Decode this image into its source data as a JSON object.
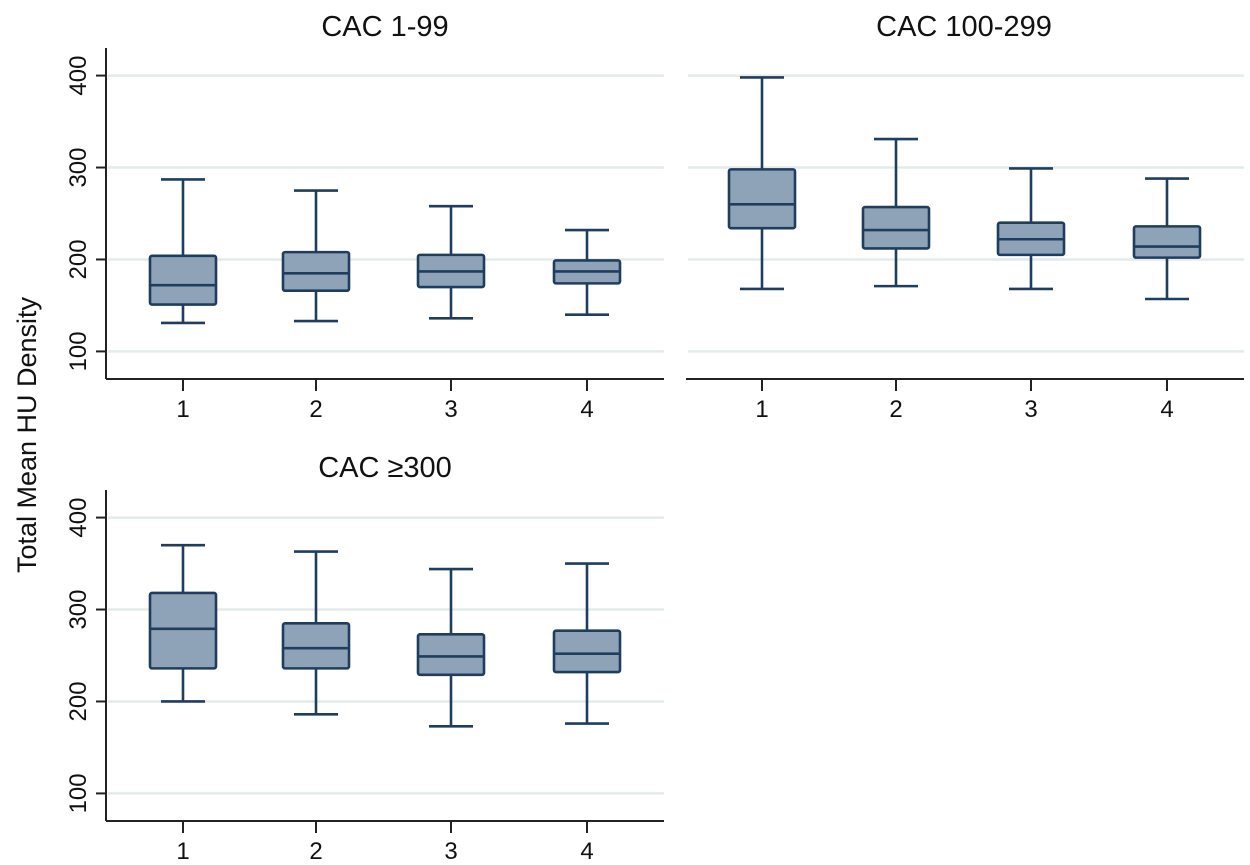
{
  "colors": {
    "box_fill": "#8fa3b8",
    "box_stroke": "#1f3e5e",
    "grid": "#e3ebea",
    "axis": "#222222"
  },
  "chart_data": [
    {
      "type": "box",
      "title": "CAC 1-99",
      "ylabel": "Total Mean HU Density",
      "categories": [
        "1",
        "2",
        "3",
        "4"
      ],
      "ylim": [
        70,
        430
      ],
      "yticks": [
        100,
        200,
        300,
        400
      ],
      "ytick_labels": [
        "100",
        "200",
        "300",
        "400"
      ],
      "grid": true,
      "boxes": [
        {
          "min": 131,
          "q1": 151,
          "median": 172,
          "q3": 204,
          "max": 287
        },
        {
          "min": 133,
          "q1": 166,
          "median": 185,
          "q3": 208,
          "max": 275
        },
        {
          "min": 136,
          "q1": 170,
          "median": 187,
          "q3": 205,
          "max": 258
        },
        {
          "min": 140,
          "q1": 174,
          "median": 187,
          "q3": 199,
          "max": 232
        }
      ]
    },
    {
      "type": "box",
      "title": "CAC 100-299",
      "ylabel": "Total Mean HU Density",
      "categories": [
        "1",
        "2",
        "3",
        "4"
      ],
      "ylim": [
        70,
        430
      ],
      "yticks": [
        100,
        200,
        300,
        400
      ],
      "ytick_labels": [
        "100",
        "200",
        "300",
        "400"
      ],
      "grid": true,
      "boxes": [
        {
          "min": 168,
          "q1": 234,
          "median": 260,
          "q3": 298,
          "max": 398
        },
        {
          "min": 171,
          "q1": 212,
          "median": 232,
          "q3": 257,
          "max": 331
        },
        {
          "min": 168,
          "q1": 205,
          "median": 222,
          "q3": 240,
          "max": 299
        },
        {
          "min": 157,
          "q1": 202,
          "median": 214,
          "q3": 236,
          "max": 288
        }
      ]
    },
    {
      "type": "box",
      "title": "CAC ≥300",
      "ylabel": "Total Mean HU Density",
      "categories": [
        "1",
        "2",
        "3",
        "4"
      ],
      "ylim": [
        70,
        430
      ],
      "yticks": [
        100,
        200,
        300,
        400
      ],
      "ytick_labels": [
        "100",
        "200",
        "300",
        "400"
      ],
      "grid": true,
      "boxes": [
        {
          "min": 200,
          "q1": 236,
          "median": 279,
          "q3": 318,
          "max": 370
        },
        {
          "min": 186,
          "q1": 236,
          "median": 258,
          "q3": 285,
          "max": 363
        },
        {
          "min": 173,
          "q1": 229,
          "median": 249,
          "q3": 273,
          "max": 344
        },
        {
          "min": 176,
          "q1": 232,
          "median": 252,
          "q3": 277,
          "max": 350
        }
      ]
    }
  ]
}
